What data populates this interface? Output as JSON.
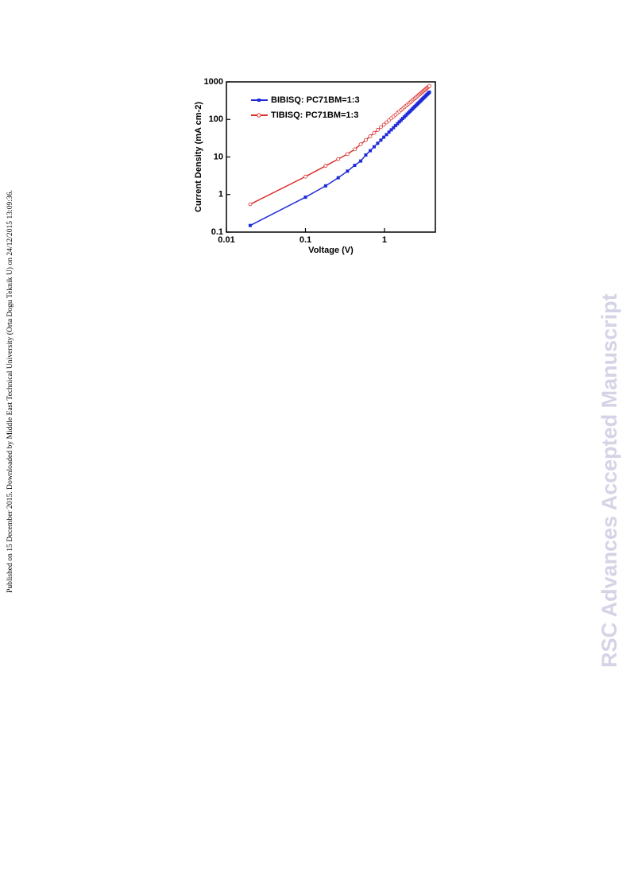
{
  "side_note": "Published on 15 December 2015. Downloaded by Middle East Technical University (Orta Dogu Teknik U) on 24/12/2015 13:09:36.",
  "watermark": "RSC Advances Accepted Manuscript",
  "chart_data": {
    "type": "line",
    "x_label": "Voltage (V)",
    "y_label": "Current Density (mA cm-2)",
    "log_x": true,
    "log_y": true,
    "xlim": [
      0.01,
      4.4
    ],
    "ylim": [
      0.1,
      1000
    ],
    "xticks": [
      0.01,
      0.1,
      1
    ],
    "yticks": [
      0.1,
      1,
      10,
      100,
      1000
    ],
    "legend": "upper left",
    "x": [
      0.02,
      0.1,
      0.18,
      0.26,
      0.34,
      0.42,
      0.5,
      0.58,
      0.66,
      0.74,
      0.82,
      0.9,
      0.98,
      1.06,
      1.14,
      1.22,
      1.3,
      1.38,
      1.46,
      1.54,
      1.62,
      1.7,
      1.78,
      1.86,
      1.94,
      2.02,
      2.1,
      2.18,
      2.26,
      2.34,
      2.42,
      2.5,
      2.58,
      2.66,
      2.74,
      2.82,
      2.9,
      2.98,
      3.06,
      3.14,
      3.22,
      3.3,
      3.38,
      3.46,
      3.54,
      3.62,
      3.7
    ],
    "series": [
      {
        "name": "BIBISQ: PC71BM=1:3",
        "color": "#1f2bd8",
        "marker": "square",
        "values": [
          0.15,
          0.85,
          1.7,
          2.8,
          4.2,
          6,
          7.8,
          11.3,
          14.7,
          18.7,
          23.2,
          28.1,
          33.6,
          39.5,
          46,
          52.9,
          60.4,
          68.4,
          76.9,
          85.9,
          95.4,
          106,
          116,
          127,
          139,
          151,
          164,
          177,
          191,
          205,
          220,
          235,
          251,
          268,
          285,
          302,
          321,
          339,
          358,
          378,
          398,
          419,
          441,
          463,
          485,
          509,
          532
        ]
      },
      {
        "name": "TIBISQ: PC71BM=1:3",
        "color": "#d9302c",
        "marker": "open-circle",
        "values": [
          0.55,
          3,
          5.8,
          8.8,
          12,
          16,
          21.7,
          28.3,
          35.6,
          43.8,
          52.6,
          62.1,
          72.3,
          83.3,
          94.8,
          107,
          120,
          133,
          148,
          162,
          178,
          194,
          211,
          228,
          246,
          264,
          283,
          303,
          323,
          344,
          365,
          387,
          409,
          432,
          456,
          480,
          504,
          530,
          555,
          581,
          608,
          635,
          664,
          692,
          721,
          750,
          780
        ]
      }
    ]
  }
}
